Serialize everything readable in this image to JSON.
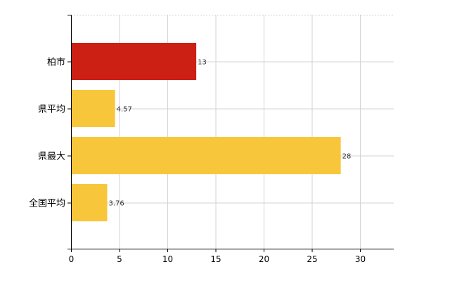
{
  "chart_data": {
    "type": "bar",
    "orientation": "horizontal",
    "categories": [
      "柏市",
      "県平均",
      "県最大",
      "全国平均"
    ],
    "values": [
      13,
      4.57,
      28,
      3.76
    ],
    "data_labels": [
      "13",
      "4.57",
      "28",
      "3.76"
    ],
    "highlight_index": 0,
    "colors": {
      "highlight": "#cc2015",
      "default": "#f8c63a",
      "grid": "#d3d3d3",
      "axis": "#000000"
    },
    "xlim": [
      0,
      33.5
    ],
    "xticks": [
      0,
      5,
      10,
      15,
      20,
      25,
      30
    ],
    "xtick_labels": [
      "0",
      "5",
      "10",
      "15",
      "20",
      "25",
      "30"
    ],
    "grid": true,
    "title": "",
    "xlabel": "",
    "ylabel": ""
  }
}
